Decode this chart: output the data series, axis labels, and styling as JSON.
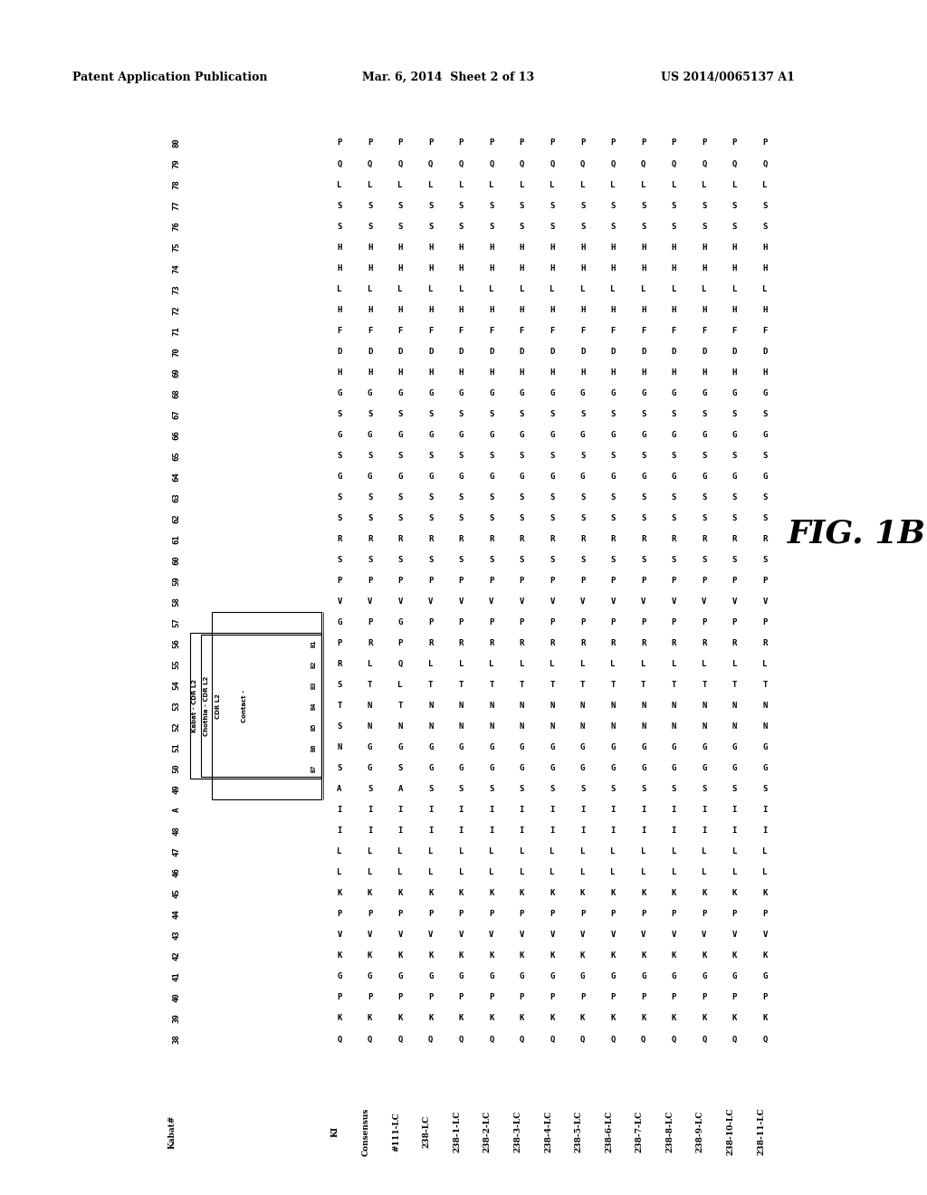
{
  "header_left": "Patent Application Publication",
  "header_mid": "Mar. 6, 2014  Sheet 2 of 13",
  "header_right": "US 2014/0065137 A1",
  "fig_label": "FIG. 1B",
  "kabat_nums": [
    "38",
    "39",
    "40",
    "41",
    "42",
    "43",
    "44",
    "45",
    "46",
    "47",
    "48",
    "A",
    "49",
    "50",
    "51",
    "52",
    "53",
    "54",
    "55",
    "56",
    "57",
    "58",
    "59",
    "60",
    "61",
    "62",
    "63",
    "64",
    "65",
    "66",
    "67",
    "68",
    "69",
    "70",
    "71",
    "72",
    "73",
    "74",
    "75",
    "76",
    "77",
    "78",
    "79",
    "80"
  ],
  "seq_names": [
    "KI",
    "Consensus",
    "#111-LC",
    "238-LC",
    "238-1-LC",
    "238-2-LC",
    "238-3-LC",
    "238-4-LC",
    "238-5-LC",
    "238-6-LC",
    "238-7-LC",
    "238-8-LC",
    "238-9-LC",
    "238-10-LC",
    "238-11-LC"
  ],
  "seq_data": {
    "38": [
      "Q",
      "Q",
      "Q",
      "Q",
      "Q",
      "Q",
      "Q",
      "Q",
      "Q",
      "Q",
      "Q",
      "Q",
      "Q",
      "Q",
      "Q"
    ],
    "39": [
      "K",
      "K",
      "K",
      "K",
      "K",
      "K",
      "K",
      "K",
      "K",
      "K",
      "K",
      "K",
      "K",
      "K",
      "K"
    ],
    "40": [
      "P",
      "P",
      "P",
      "P",
      "P",
      "P",
      "P",
      "P",
      "P",
      "P",
      "P",
      "P",
      "P",
      "P",
      "P"
    ],
    "41": [
      "G",
      "G",
      "G",
      "G",
      "G",
      "G",
      "G",
      "G",
      "G",
      "G",
      "G",
      "G",
      "G",
      "G",
      "G"
    ],
    "42": [
      "K",
      "K",
      "K",
      "K",
      "K",
      "K",
      "K",
      "K",
      "K",
      "K",
      "K",
      "K",
      "K",
      "K",
      "K"
    ],
    "43": [
      "V",
      "V",
      "V",
      "V",
      "V",
      "V",
      "V",
      "V",
      "V",
      "V",
      "V",
      "V",
      "V",
      "V",
      "V"
    ],
    "44": [
      "P",
      "P",
      "P",
      "P",
      "P",
      "P",
      "P",
      "P",
      "P",
      "P",
      "P",
      "P",
      "P",
      "P",
      "P"
    ],
    "45": [
      "K",
      "K",
      "K",
      "K",
      "K",
      "K",
      "K",
      "K",
      "K",
      "K",
      "K",
      "K",
      "K",
      "K",
      "K"
    ],
    "46": [
      "L",
      "L",
      "L",
      "L",
      "L",
      "L",
      "L",
      "L",
      "L",
      "L",
      "L",
      "L",
      "L",
      "L",
      "L"
    ],
    "47": [
      "L",
      "L",
      "L",
      "L",
      "L",
      "L",
      "L",
      "L",
      "L",
      "L",
      "L",
      "L",
      "L",
      "L",
      "L"
    ],
    "48": [
      "I",
      "I",
      "I",
      "I",
      "I",
      "I",
      "I",
      "I",
      "I",
      "I",
      "I",
      "I",
      "I",
      "I",
      "I"
    ],
    "A": [
      "I",
      "I",
      "I",
      "I",
      "I",
      "I",
      "I",
      "I",
      "I",
      "I",
      "I",
      "I",
      "I",
      "I",
      "I"
    ],
    "49": [
      "A",
      "S",
      "A",
      "S",
      "S",
      "S",
      "S",
      "S",
      "S",
      "S",
      "S",
      "S",
      "S",
      "S",
      "S"
    ],
    "50": [
      "S",
      "G",
      "S",
      "G",
      "G",
      "G",
      "G",
      "G",
      "G",
      "G",
      "G",
      "G",
      "G",
      "G",
      "G"
    ],
    "51": [
      "N",
      "G",
      "G",
      "G",
      "G",
      "G",
      "G",
      "G",
      "G",
      "G",
      "G",
      "G",
      "G",
      "G",
      "G"
    ],
    "52": [
      "S",
      "N",
      "N",
      "N",
      "N",
      "N",
      "N",
      "N",
      "N",
      "N",
      "N",
      "N",
      "N",
      "N",
      "N"
    ],
    "53": [
      "T",
      "N",
      "T",
      "N",
      "N",
      "N",
      "N",
      "N",
      "N",
      "N",
      "N",
      "N",
      "N",
      "N",
      "N"
    ],
    "54": [
      "S",
      "T",
      "L",
      "T",
      "T",
      "T",
      "T",
      "T",
      "T",
      "T",
      "T",
      "T",
      "T",
      "T",
      "T"
    ],
    "55": [
      "R",
      "L",
      "Q",
      "L",
      "L",
      "L",
      "L",
      "L",
      "L",
      "L",
      "L",
      "L",
      "L",
      "L",
      "L"
    ],
    "56": [
      "P",
      "R",
      "P",
      "R",
      "R",
      "R",
      "R",
      "R",
      "R",
      "R",
      "R",
      "R",
      "R",
      "R",
      "R"
    ],
    "57": [
      "G",
      "P",
      "G",
      "P",
      "P",
      "P",
      "P",
      "P",
      "P",
      "P",
      "P",
      "P",
      "P",
      "P",
      "P"
    ],
    "58": [
      "V",
      "V",
      "V",
      "V",
      "V",
      "V",
      "V",
      "V",
      "V",
      "V",
      "V",
      "V",
      "V",
      "V",
      "V"
    ],
    "59": [
      "P",
      "P",
      "P",
      "P",
      "P",
      "P",
      "P",
      "P",
      "P",
      "P",
      "P",
      "P",
      "P",
      "P",
      "P"
    ],
    "60": [
      "S",
      "S",
      "S",
      "S",
      "S",
      "S",
      "S",
      "S",
      "S",
      "S",
      "S",
      "S",
      "S",
      "S",
      "S"
    ],
    "61": [
      "R",
      "R",
      "R",
      "R",
      "R",
      "R",
      "R",
      "R",
      "R",
      "R",
      "R",
      "R",
      "R",
      "R",
      "R"
    ],
    "62": [
      "S",
      "S",
      "S",
      "S",
      "S",
      "S",
      "S",
      "S",
      "S",
      "S",
      "S",
      "S",
      "S",
      "S",
      "S"
    ],
    "63": [
      "S",
      "S",
      "S",
      "S",
      "S",
      "S",
      "S",
      "S",
      "S",
      "S",
      "S",
      "S",
      "S",
      "S",
      "S"
    ],
    "64": [
      "G",
      "G",
      "G",
      "G",
      "G",
      "G",
      "G",
      "G",
      "G",
      "G",
      "G",
      "G",
      "G",
      "G",
      "G"
    ],
    "65": [
      "S",
      "S",
      "S",
      "S",
      "S",
      "S",
      "S",
      "S",
      "S",
      "S",
      "S",
      "S",
      "S",
      "S",
      "S"
    ],
    "66": [
      "G",
      "G",
      "G",
      "G",
      "G",
      "G",
      "G",
      "G",
      "G",
      "G",
      "G",
      "G",
      "G",
      "G",
      "G"
    ],
    "67": [
      "S",
      "S",
      "S",
      "S",
      "S",
      "S",
      "S",
      "S",
      "S",
      "S",
      "S",
      "S",
      "S",
      "S",
      "S"
    ],
    "68": [
      "G",
      "G",
      "G",
      "G",
      "G",
      "G",
      "G",
      "G",
      "G",
      "G",
      "G",
      "G",
      "G",
      "G",
      "G"
    ],
    "69": [
      "H",
      "H",
      "H",
      "H",
      "H",
      "H",
      "H",
      "H",
      "H",
      "H",
      "H",
      "H",
      "H",
      "H",
      "H"
    ],
    "70": [
      "D",
      "D",
      "D",
      "D",
      "D",
      "D",
      "D",
      "D",
      "D",
      "D",
      "D",
      "D",
      "D",
      "D",
      "D"
    ],
    "71": [
      "F",
      "F",
      "F",
      "F",
      "F",
      "F",
      "F",
      "F",
      "F",
      "F",
      "F",
      "F",
      "F",
      "F",
      "F"
    ],
    "72": [
      "H",
      "H",
      "H",
      "H",
      "H",
      "H",
      "H",
      "H",
      "H",
      "H",
      "H",
      "H",
      "H",
      "H",
      "H"
    ],
    "73": [
      "L",
      "L",
      "L",
      "L",
      "L",
      "L",
      "L",
      "L",
      "L",
      "L",
      "L",
      "L",
      "L",
      "L",
      "L"
    ],
    "74": [
      "H",
      "H",
      "H",
      "H",
      "H",
      "H",
      "H",
      "H",
      "H",
      "H",
      "H",
      "H",
      "H",
      "H",
      "H"
    ],
    "75": [
      "H",
      "H",
      "H",
      "H",
      "H",
      "H",
      "H",
      "H",
      "H",
      "H",
      "H",
      "H",
      "H",
      "H",
      "H"
    ],
    "76": [
      "S",
      "S",
      "S",
      "S",
      "S",
      "S",
      "S",
      "S",
      "S",
      "S",
      "S",
      "S",
      "S",
      "S",
      "S"
    ],
    "77": [
      "S",
      "S",
      "S",
      "S",
      "S",
      "S",
      "S",
      "S",
      "S",
      "S",
      "S",
      "S",
      "S",
      "S",
      "S"
    ],
    "78": [
      "L",
      "L",
      "L",
      "L",
      "L",
      "L",
      "L",
      "L",
      "L",
      "L",
      "L",
      "L",
      "L",
      "L",
      "L"
    ],
    "79": [
      "Q",
      "Q",
      "Q",
      "Q",
      "Q",
      "Q",
      "Q",
      "Q",
      "Q",
      "Q",
      "Q",
      "Q",
      "Q",
      "Q",
      "Q"
    ],
    "80": [
      "P",
      "P",
      "P",
      "P",
      "P",
      "P",
      "P",
      "P",
      "P",
      "P",
      "P",
      "P",
      "P",
      "P",
      "P"
    ]
  },
  "sub_labels": [
    "B1",
    "B2",
    "B3",
    "B4",
    "B5",
    "B6",
    "B7"
  ],
  "sub_positions": [
    "50",
    "51",
    "52",
    "53",
    "54",
    "55",
    "56"
  ],
  "kabat_cdr_range": [
    "50",
    "56"
  ],
  "contact_cdr_range": [
    "49",
    "57"
  ]
}
